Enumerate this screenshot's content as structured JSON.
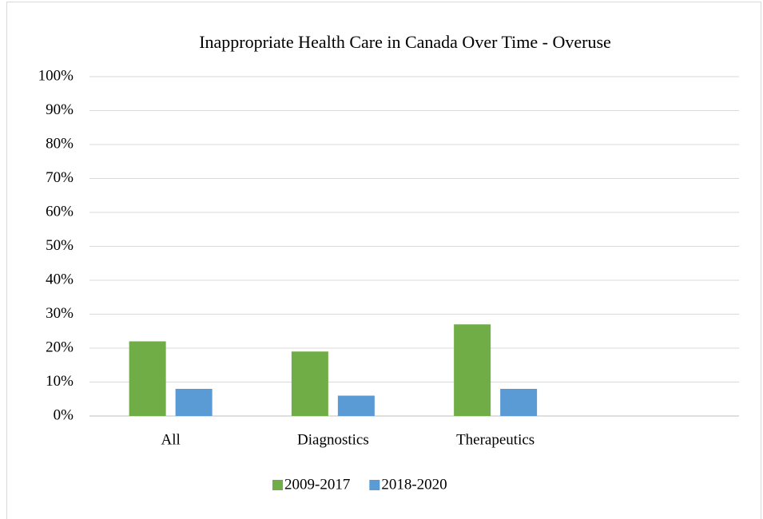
{
  "chart_data": {
    "type": "bar",
    "title": "Inappropriate Health Care in Canada Over Time - Overuse",
    "categories": [
      "All",
      "Diagnostics",
      "Therapeutics",
      null
    ],
    "series": [
      {
        "name": "2009-2017",
        "color": "#70ad47",
        "values": [
          22,
          19,
          27,
          null
        ]
      },
      {
        "name": "2018-2020",
        "color": "#5b9bd5",
        "values": [
          8,
          6,
          8,
          null
        ]
      }
    ],
    "ylim": [
      0,
      100
    ],
    "yticks": [
      {
        "value": 0,
        "label": "0%"
      },
      {
        "value": 10,
        "label": "10%"
      },
      {
        "value": 20,
        "label": "20%"
      },
      {
        "value": 30,
        "label": "30%"
      },
      {
        "value": 40,
        "label": "40%"
      },
      {
        "value": 50,
        "label": "50%"
      },
      {
        "value": 60,
        "label": "60%"
      },
      {
        "value": 70,
        "label": "70%"
      },
      {
        "value": 80,
        "label": "80%"
      },
      {
        "value": 90,
        "label": "90%"
      },
      {
        "value": 100,
        "label": "100%"
      }
    ],
    "grid": true,
    "legend": "bottom"
  }
}
